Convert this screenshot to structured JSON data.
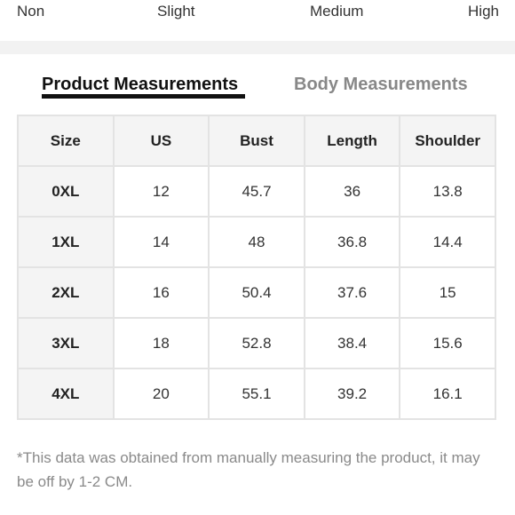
{
  "stretch": {
    "labels": [
      "Non",
      "Slight",
      "Medium",
      "High"
    ]
  },
  "tabs": {
    "product": "Product Measurements",
    "body": "Body Measurements"
  },
  "table": {
    "headers": [
      "Size",
      "US",
      "Bust",
      "Length",
      "Shoulder"
    ],
    "rows": [
      [
        "0XL",
        "12",
        "45.7",
        "36",
        "13.8"
      ],
      [
        "1XL",
        "14",
        "48",
        "36.8",
        "14.4"
      ],
      [
        "2XL",
        "16",
        "50.4",
        "37.6",
        "15"
      ],
      [
        "3XL",
        "18",
        "52.8",
        "38.4",
        "15.6"
      ],
      [
        "4XL",
        "20",
        "55.1",
        "39.2",
        "16.1"
      ]
    ]
  },
  "note": "*This data was obtained from manually measuring the product, it may be off by 1-2 CM."
}
